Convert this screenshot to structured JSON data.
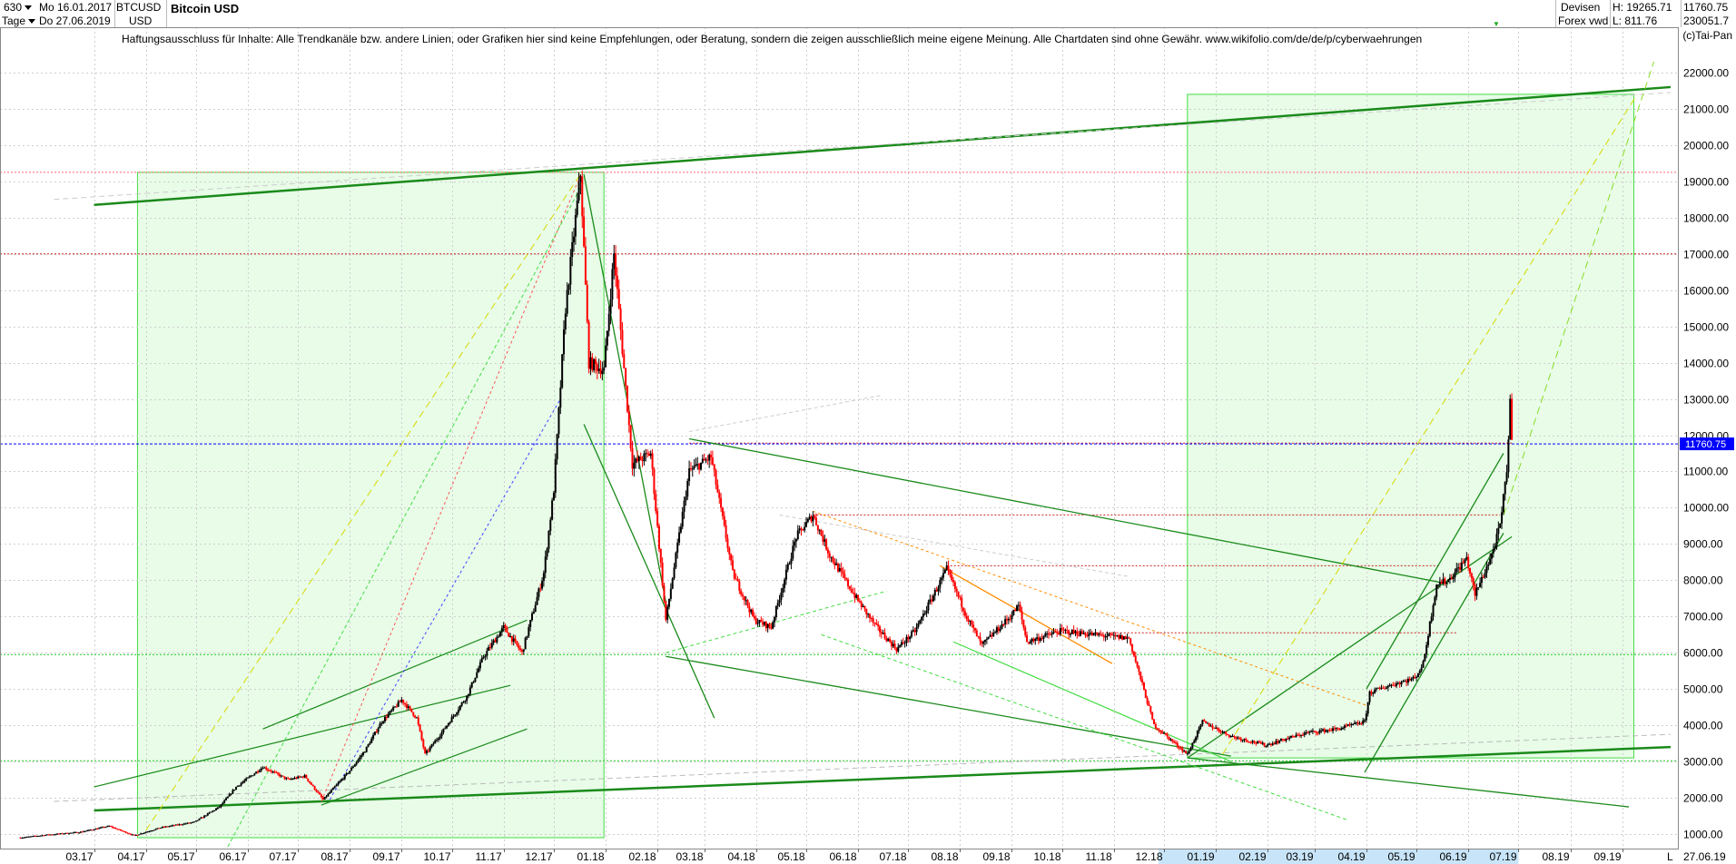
{
  "header": {
    "period_value": "630",
    "range_unit": "Tage",
    "date_start": "Mo 16.01.2017",
    "date_end": "Do 27.06.2019",
    "symbol": "BTCUSD",
    "currency": "USD",
    "title": "Bitcoin USD",
    "category": "Devisen",
    "source": "Forex vwd",
    "high_label": "H: 19265.71",
    "low_label": "L: 811.76",
    "last_price": "11760.75",
    "volume": "230051.7",
    "indicator_mark": "▼"
  },
  "disclaimer": "Haftungsausschluss für Inhalte: Alle Trendkanäle bzw. andere Linien, oder Grafiken hier sind keine Empfehlungen, oder Beratung, sondern die zeigen ausschließlich meine eigene Meinung. Alle Chartdaten sind ohne Gewähr.  www.wikifolio.com/de/de/p/cyberwaehrungen",
  "copyright": "(c)Tai-Pan",
  "footer": {
    "log_marker": "L",
    "end_date": "27.06.19"
  },
  "colors": {
    "up": "#000000",
    "down": "#ff0000",
    "trend_dark": "#1a8a1a",
    "trend_light": "#44dd44",
    "zone_fill": "#e8fce8",
    "current_price": "#0000ff",
    "orange": "#ff8c00",
    "yellow": "#d8d800"
  },
  "chart_data": {
    "type": "candlestick",
    "title": "Bitcoin USD",
    "x_range": [
      "2017-02-01",
      "2019-09-30"
    ],
    "y_range": [
      600,
      23000
    ],
    "y_ticks": [
      1000,
      2000,
      3000,
      4000,
      5000,
      6000,
      7000,
      8000,
      9000,
      10000,
      11000,
      12000,
      13000,
      14000,
      15000,
      16000,
      17000,
      18000,
      19000,
      20000,
      21000,
      22000
    ],
    "y_tick_labels": [
      "1000.00",
      "2000.00",
      "3000.00",
      "4000.00",
      "5000.00",
      "6000.00",
      "7000.00",
      "8000.00",
      "9000.00",
      "10000.00",
      "11000.00",
      "12000.00",
      "13000.00",
      "14000.00",
      "15000.00",
      "16000.00",
      "17000.00",
      "18000.00",
      "19000.00",
      "20000.00",
      "21000.00",
      "22000.00"
    ],
    "x_ticks": [
      {
        "date": "2017-03-01",
        "label": "03.17"
      },
      {
        "date": "2017-04-01",
        "label": "04.17"
      },
      {
        "date": "2017-05-01",
        "label": "05.17"
      },
      {
        "date": "2017-06-01",
        "label": "06.17"
      },
      {
        "date": "2017-07-01",
        "label": "07.17"
      },
      {
        "date": "2017-08-01",
        "label": "08.17"
      },
      {
        "date": "2017-09-01",
        "label": "09.17"
      },
      {
        "date": "2017-10-01",
        "label": "10.17"
      },
      {
        "date": "2017-11-01",
        "label": "11.17"
      },
      {
        "date": "2017-12-01",
        "label": "12.17"
      },
      {
        "date": "2018-01-01",
        "label": "01.18"
      },
      {
        "date": "2018-02-01",
        "label": "02.18"
      },
      {
        "date": "2018-03-01",
        "label": "03.18"
      },
      {
        "date": "2018-04-01",
        "label": "04.18"
      },
      {
        "date": "2018-05-01",
        "label": "05.18"
      },
      {
        "date": "2018-06-01",
        "label": "06.18"
      },
      {
        "date": "2018-07-01",
        "label": "07.18"
      },
      {
        "date": "2018-08-01",
        "label": "08.18"
      },
      {
        "date": "2018-09-01",
        "label": "09.18"
      },
      {
        "date": "2018-10-01",
        "label": "10.18"
      },
      {
        "date": "2018-11-01",
        "label": "11.18"
      },
      {
        "date": "2018-12-01",
        "label": "12.18"
      },
      {
        "date": "2019-01-01",
        "label": "01.19"
      },
      {
        "date": "2019-02-01",
        "label": "02.19"
      },
      {
        "date": "2019-03-01",
        "label": "03.19"
      },
      {
        "date": "2019-04-01",
        "label": "04.19"
      },
      {
        "date": "2019-05-01",
        "label": "05.19"
      },
      {
        "date": "2019-06-01",
        "label": "06.19"
      },
      {
        "date": "2019-07-01",
        "label": "07.19"
      },
      {
        "date": "2019-08-01",
        "label": "08.19"
      },
      {
        "date": "2019-09-01",
        "label": "09.19"
      }
    ],
    "highlighted_months": [
      "12.18",
      "01.19",
      "02.19",
      "03.19",
      "04.19",
      "05.19",
      "06.19"
    ],
    "current_price": 11760.75,
    "price_path": [
      [
        "2017-01-16",
        900
      ],
      [
        "2017-02-01",
        980
      ],
      [
        "2017-02-20",
        1050
      ],
      [
        "2017-03-10",
        1220
      ],
      [
        "2017-03-25",
        960
      ],
      [
        "2017-04-10",
        1180
      ],
      [
        "2017-04-30",
        1330
      ],
      [
        "2017-05-15",
        1750
      ],
      [
        "2017-05-25",
        2300
      ],
      [
        "2017-06-10",
        2850
      ],
      [
        "2017-06-25",
        2500
      ],
      [
        "2017-07-05",
        2600
      ],
      [
        "2017-07-16",
        1950
      ],
      [
        "2017-08-01",
        2750
      ],
      [
        "2017-08-10",
        3300
      ],
      [
        "2017-08-20",
        4100
      ],
      [
        "2017-09-01",
        4700
      ],
      [
        "2017-09-10",
        4200
      ],
      [
        "2017-09-15",
        3200
      ],
      [
        "2017-09-25",
        3800
      ],
      [
        "2017-10-10",
        4800
      ],
      [
        "2017-10-20",
        5900
      ],
      [
        "2017-11-01",
        6700
      ],
      [
        "2017-11-12",
        6000
      ],
      [
        "2017-11-25",
        8200
      ],
      [
        "2017-12-01",
        10500
      ],
      [
        "2017-12-08",
        15500
      ],
      [
        "2017-12-17",
        19200
      ],
      [
        "2017-12-22",
        14000
      ],
      [
        "2017-12-31",
        13800
      ],
      [
        "2018-01-06",
        17000
      ],
      [
        "2018-01-17",
        11200
      ],
      [
        "2018-01-28",
        11500
      ],
      [
        "2018-02-06",
        6900
      ],
      [
        "2018-02-20",
        11000
      ],
      [
        "2018-03-05",
        11400
      ],
      [
        "2018-03-18",
        8200
      ],
      [
        "2018-03-31",
        6900
      ],
      [
        "2018-04-10",
        6700
      ],
      [
        "2018-04-25",
        9200
      ],
      [
        "2018-05-05",
        9800
      ],
      [
        "2018-05-15",
        8700
      ],
      [
        "2018-05-31",
        7500
      ],
      [
        "2018-06-12",
        6700
      ],
      [
        "2018-06-24",
        6100
      ],
      [
        "2018-07-05",
        6600
      ],
      [
        "2018-07-24",
        8300
      ],
      [
        "2018-08-05",
        7000
      ],
      [
        "2018-08-14",
        6200
      ],
      [
        "2018-08-31",
        7000
      ],
      [
        "2018-09-05",
        7300
      ],
      [
        "2018-09-10",
        6300
      ],
      [
        "2018-09-30",
        6600
      ],
      [
        "2018-10-20",
        6500
      ],
      [
        "2018-11-10",
        6400
      ],
      [
        "2018-11-15",
        5600
      ],
      [
        "2018-11-25",
        4000
      ],
      [
        "2018-12-15",
        3200
      ],
      [
        "2018-12-24",
        4100
      ],
      [
        "2019-01-10",
        3700
      ],
      [
        "2019-01-31",
        3450
      ],
      [
        "2019-02-10",
        3600
      ],
      [
        "2019-02-25",
        3800
      ],
      [
        "2019-03-15",
        3900
      ],
      [
        "2019-03-31",
        4100
      ],
      [
        "2019-04-03",
        4900
      ],
      [
        "2019-04-15",
        5100
      ],
      [
        "2019-04-30",
        5300
      ],
      [
        "2019-05-05",
        5700
      ],
      [
        "2019-05-13",
        7900
      ],
      [
        "2019-05-20",
        8000
      ],
      [
        "2019-05-31",
        8600
      ],
      [
        "2019-06-05",
        7600
      ],
      [
        "2019-06-15",
        8700
      ],
      [
        "2019-06-20",
        9500
      ],
      [
        "2019-06-24",
        11000
      ],
      [
        "2019-06-26",
        13000
      ],
      [
        "2019-06-27",
        11760
      ]
    ]
  }
}
